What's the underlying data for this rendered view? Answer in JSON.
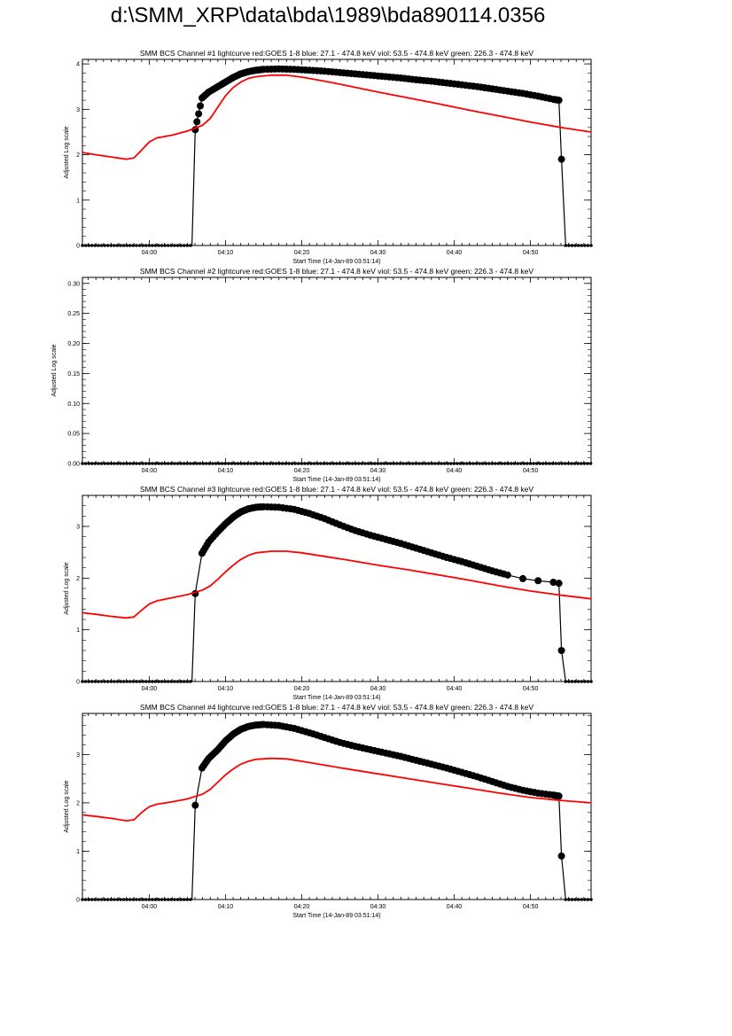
{
  "page": {
    "title": "d:\\SMM_XRP\\data\\bda\\1989\\bda890114.0356"
  },
  "chart_data": [
    {
      "type": "line",
      "title": "SMM BCS Channel #1 lightcurve  red:GOES 1-8  blue: 27.1 - 474.8 keV  viol: 53.5 - 474.8 keV  green: 226.3 - 474.8 keV",
      "xlabel": "Start Time (14-Jan-89 03:51:14)",
      "ylabel": "Adjusted Log scale",
      "xlim": [
        "03:51:14",
        "04:57:57"
      ],
      "ylim": [
        0,
        4.1
      ],
      "xticks": [
        "04:00",
        "04:10",
        "04:20",
        "04:30",
        "04:40",
        "04:50"
      ],
      "yticks": [
        "0",
        "1",
        "2",
        "3",
        "4"
      ],
      "series": [
        {
          "color": "#000000",
          "markers": true,
          "points": [
            [
              "03:51:14",
              0
            ],
            [
              "04:05:36",
              0
            ],
            [
              "04:06:02",
              2.55
            ],
            [
              "04:06:55",
              3.25
            ],
            [
              "04:07:48",
              3.38
            ],
            [
              "04:09:00",
              3.5
            ],
            [
              "04:10:00",
              3.6
            ],
            [
              "04:11:00",
              3.7
            ],
            [
              "04:12:00",
              3.78
            ],
            [
              "04:13:00",
              3.83
            ],
            [
              "04:14:00",
              3.86
            ],
            [
              "04:15:00",
              3.88
            ],
            [
              "04:17:00",
              3.89
            ],
            [
              "04:19:00",
              3.88
            ],
            [
              "04:21:00",
              3.86
            ],
            [
              "04:23:00",
              3.84
            ],
            [
              "04:25:00",
              3.81
            ],
            [
              "04:27:00",
              3.78
            ],
            [
              "04:29:00",
              3.75
            ],
            [
              "04:31:00",
              3.72
            ],
            [
              "04:33:00",
              3.69
            ],
            [
              "04:35:00",
              3.65
            ],
            [
              "04:37:00",
              3.62
            ],
            [
              "04:39:00",
              3.58
            ],
            [
              "04:41:00",
              3.54
            ],
            [
              "04:43:00",
              3.5
            ],
            [
              "04:45:00",
              3.45
            ],
            [
              "04:47:00",
              3.4
            ],
            [
              "04:49:00",
              3.35
            ],
            [
              "04:51:00",
              3.29
            ],
            [
              "04:53:00",
              3.22
            ],
            [
              "04:53:44",
              3.2
            ],
            [
              "04:54:04",
              1.9
            ],
            [
              "04:54:37",
              0
            ],
            [
              "04:57:57",
              0
            ]
          ]
        },
        {
          "color": "#ff0000",
          "markers": false,
          "points": [
            [
              "03:51:14",
              2.05
            ],
            [
              "03:53:00",
              2.0
            ],
            [
              "03:55:00",
              1.95
            ],
            [
              "03:57:00",
              1.9
            ],
            [
              "03:58:00",
              1.93
            ],
            [
              "03:59:00",
              2.1
            ],
            [
              "04:00:00",
              2.28
            ],
            [
              "04:01:00",
              2.37
            ],
            [
              "04:03:00",
              2.43
            ],
            [
              "04:05:00",
              2.52
            ],
            [
              "04:07:00",
              2.65
            ],
            [
              "04:08:00",
              2.8
            ],
            [
              "04:09:00",
              3.05
            ],
            [
              "04:10:00",
              3.3
            ],
            [
              "04:11:00",
              3.48
            ],
            [
              "04:12:00",
              3.6
            ],
            [
              "04:13:00",
              3.68
            ],
            [
              "04:14:00",
              3.72
            ],
            [
              "04:16:00",
              3.75
            ],
            [
              "04:18:00",
              3.75
            ],
            [
              "04:20:00",
              3.71
            ],
            [
              "04:23:00",
              3.62
            ],
            [
              "04:26:00",
              3.52
            ],
            [
              "04:30:00",
              3.38
            ],
            [
              "04:34:00",
              3.25
            ],
            [
              "04:38:00",
              3.12
            ],
            [
              "04:42:00",
              2.98
            ],
            [
              "04:46:00",
              2.85
            ],
            [
              "04:50:00",
              2.72
            ],
            [
              "04:54:00",
              2.6
            ],
            [
              "04:57:57",
              2.5
            ]
          ]
        }
      ]
    },
    {
      "type": "line",
      "title": "SMM BCS Channel #2 lightcurve  red:GOES 1-8  blue: 27.1 - 474.8 keV  viol: 53.5 - 474.8 keV  green: 226.3 - 474.8 keV",
      "xlabel": "Start Time (14-Jan-89 03:51:14)",
      "ylabel": "Adjusted Log scale",
      "xlim": [
        "03:51:14",
        "04:57:57"
      ],
      "ylim": [
        0,
        0.31
      ],
      "xticks": [
        "04:00",
        "04:10",
        "04:20",
        "04:30",
        "04:40",
        "04:50"
      ],
      "yticks": [
        "0.00",
        "0.05",
        "0.10",
        "0.15",
        "0.20",
        "0.25",
        "0.30"
      ],
      "series": [
        {
          "color": "#000000",
          "markers": true,
          "points": [
            [
              "03:51:14",
              0
            ],
            [
              "04:57:57",
              0
            ]
          ]
        }
      ]
    },
    {
      "type": "line",
      "title": "SMM BCS Channel #3 lightcurve  red:GOES 1-8  blue: 27.1 - 474.8 keV  viol: 53.5 - 474.8 keV  green: 226.3 - 474.8 keV",
      "xlabel": "Start Time (14-Jan-89 03:51:14)",
      "ylabel": "Adjusted Log scale",
      "xlim": [
        "03:51:14",
        "04:57:57"
      ],
      "ylim": [
        0,
        3.6
      ],
      "xticks": [
        "04:00",
        "04:10",
        "04:20",
        "04:30",
        "04:40",
        "04:50"
      ],
      "yticks": [
        "0",
        "1",
        "2",
        "3"
      ],
      "series": [
        {
          "color": "#000000",
          "markers": true,
          "points": [
            [
              "03:51:14",
              0
            ],
            [
              "04:05:36",
              0
            ],
            [
              "04:06:02",
              1.7
            ],
            [
              "04:06:55",
              2.48
            ],
            [
              "04:07:48",
              2.7
            ],
            [
              "04:09:00",
              2.9
            ],
            [
              "04:10:00",
              3.05
            ],
            [
              "04:11:00",
              3.18
            ],
            [
              "04:12:00",
              3.28
            ],
            [
              "04:13:00",
              3.34
            ],
            [
              "04:14:00",
              3.37
            ],
            [
              "04:15:00",
              3.38
            ],
            [
              "04:17:00",
              3.37
            ],
            [
              "04:19:00",
              3.33
            ],
            [
              "04:21:00",
              3.25
            ],
            [
              "04:23:00",
              3.15
            ],
            [
              "04:25:00",
              3.03
            ],
            [
              "04:27:00",
              2.92
            ],
            [
              "04:29:00",
              2.83
            ],
            [
              "04:31:00",
              2.75
            ],
            [
              "04:33:00",
              2.67
            ],
            [
              "04:35:00",
              2.58
            ],
            [
              "04:37:00",
              2.49
            ],
            [
              "04:39:00",
              2.4
            ],
            [
              "04:41:00",
              2.32
            ],
            [
              "04:43:00",
              2.23
            ],
            [
              "04:45:00",
              2.14
            ],
            [
              "04:47:00",
              2.06
            ],
            [
              "04:49:00",
              1.99
            ],
            [
              "04:51:00",
              1.95
            ],
            [
              "04:53:00",
              1.92
            ],
            [
              "04:53:44",
              1.9
            ],
            [
              "04:54:04",
              0.6
            ],
            [
              "04:54:37",
              0
            ],
            [
              "04:57:57",
              0
            ]
          ]
        },
        {
          "color": "#ff0000",
          "markers": false,
          "points": [
            [
              "03:51:14",
              1.33
            ],
            [
              "03:53:00",
              1.3
            ],
            [
              "03:55:00",
              1.26
            ],
            [
              "03:57:00",
              1.23
            ],
            [
              "03:58:00",
              1.25
            ],
            [
              "03:59:00",
              1.38
            ],
            [
              "04:00:00",
              1.5
            ],
            [
              "04:01:00",
              1.56
            ],
            [
              "04:03:00",
              1.62
            ],
            [
              "04:05:00",
              1.68
            ],
            [
              "04:07:00",
              1.77
            ],
            [
              "04:08:00",
              1.85
            ],
            [
              "04:09:00",
              1.98
            ],
            [
              "04:10:00",
              2.12
            ],
            [
              "04:11:00",
              2.25
            ],
            [
              "04:12:00",
              2.36
            ],
            [
              "04:13:00",
              2.44
            ],
            [
              "04:14:00",
              2.49
            ],
            [
              "04:16:00",
              2.52
            ],
            [
              "04:18:00",
              2.52
            ],
            [
              "04:20:00",
              2.49
            ],
            [
              "04:23:00",
              2.42
            ],
            [
              "04:26:00",
              2.35
            ],
            [
              "04:30:00",
              2.25
            ],
            [
              "04:34:00",
              2.16
            ],
            [
              "04:38:00",
              2.06
            ],
            [
              "04:42:00",
              1.96
            ],
            [
              "04:46:00",
              1.85
            ],
            [
              "04:50:00",
              1.75
            ],
            [
              "04:54:00",
              1.67
            ],
            [
              "04:57:57",
              1.6
            ]
          ]
        }
      ]
    },
    {
      "type": "line",
      "title": "SMM BCS Channel #4 lightcurve  red:GOES 1-8  blue: 27.1 - 474.8 keV  viol: 53.5 - 474.8 keV  green: 226.3 - 474.8 keV",
      "xlabel": "Start Time (14-Jan-89 03:51:14)",
      "ylabel": "Adjusted Log scale",
      "xlim": [
        "03:51:14",
        "04:57:57"
      ],
      "ylim": [
        0,
        3.85
      ],
      "xticks": [
        "04:00",
        "04:10",
        "04:20",
        "04:30",
        "04:40",
        "04:50"
      ],
      "yticks": [
        "0",
        "1",
        "2",
        "3"
      ],
      "series": [
        {
          "color": "#000000",
          "markers": true,
          "points": [
            [
              "03:51:14",
              0
            ],
            [
              "04:05:36",
              0
            ],
            [
              "04:06:02",
              1.95
            ],
            [
              "04:06:55",
              2.72
            ],
            [
              "04:07:48",
              2.92
            ],
            [
              "04:09:00",
              3.1
            ],
            [
              "04:10:00",
              3.28
            ],
            [
              "04:11:00",
              3.42
            ],
            [
              "04:12:00",
              3.52
            ],
            [
              "04:13:00",
              3.58
            ],
            [
              "04:14:00",
              3.61
            ],
            [
              "04:15:00",
              3.62
            ],
            [
              "04:17:00",
              3.6
            ],
            [
              "04:19:00",
              3.54
            ],
            [
              "04:21:00",
              3.45
            ],
            [
              "04:23:00",
              3.35
            ],
            [
              "04:25:00",
              3.25
            ],
            [
              "04:27:00",
              3.17
            ],
            [
              "04:29:00",
              3.1
            ],
            [
              "04:31:00",
              3.03
            ],
            [
              "04:33:00",
              2.96
            ],
            [
              "04:35:00",
              2.88
            ],
            [
              "04:37:00",
              2.8
            ],
            [
              "04:39:00",
              2.72
            ],
            [
              "04:41:00",
              2.63
            ],
            [
              "04:43:00",
              2.54
            ],
            [
              "04:45:00",
              2.44
            ],
            [
              "04:47:00",
              2.34
            ],
            [
              "04:49:00",
              2.26
            ],
            [
              "04:51:00",
              2.2
            ],
            [
              "04:53:00",
              2.16
            ],
            [
              "04:53:44",
              2.14
            ],
            [
              "04:54:04",
              0.9
            ],
            [
              "04:54:37",
              0
            ],
            [
              "04:57:57",
              0
            ]
          ]
        },
        {
          "color": "#ff0000",
          "markers": false,
          "points": [
            [
              "03:51:14",
              1.75
            ],
            [
              "03:53:00",
              1.72
            ],
            [
              "03:55:00",
              1.68
            ],
            [
              "03:57:00",
              1.63
            ],
            [
              "03:58:00",
              1.65
            ],
            [
              "03:59:00",
              1.8
            ],
            [
              "04:00:00",
              1.92
            ],
            [
              "04:01:00",
              1.97
            ],
            [
              "04:03:00",
              2.02
            ],
            [
              "04:05:00",
              2.08
            ],
            [
              "04:07:00",
              2.18
            ],
            [
              "04:08:00",
              2.28
            ],
            [
              "04:09:00",
              2.43
            ],
            [
              "04:10:00",
              2.58
            ],
            [
              "04:11:00",
              2.7
            ],
            [
              "04:12:00",
              2.8
            ],
            [
              "04:13:00",
              2.86
            ],
            [
              "04:14:00",
              2.9
            ],
            [
              "04:16:00",
              2.92
            ],
            [
              "04:18:00",
              2.91
            ],
            [
              "04:20:00",
              2.86
            ],
            [
              "04:23:00",
              2.78
            ],
            [
              "04:26:00",
              2.7
            ],
            [
              "04:30:00",
              2.6
            ],
            [
              "04:34:00",
              2.5
            ],
            [
              "04:38:00",
              2.4
            ],
            [
              "04:42:00",
              2.3
            ],
            [
              "04:46:00",
              2.2
            ],
            [
              "04:50:00",
              2.11
            ],
            [
              "04:54:00",
              2.05
            ],
            [
              "04:57:57",
              2.0
            ]
          ]
        }
      ]
    }
  ]
}
